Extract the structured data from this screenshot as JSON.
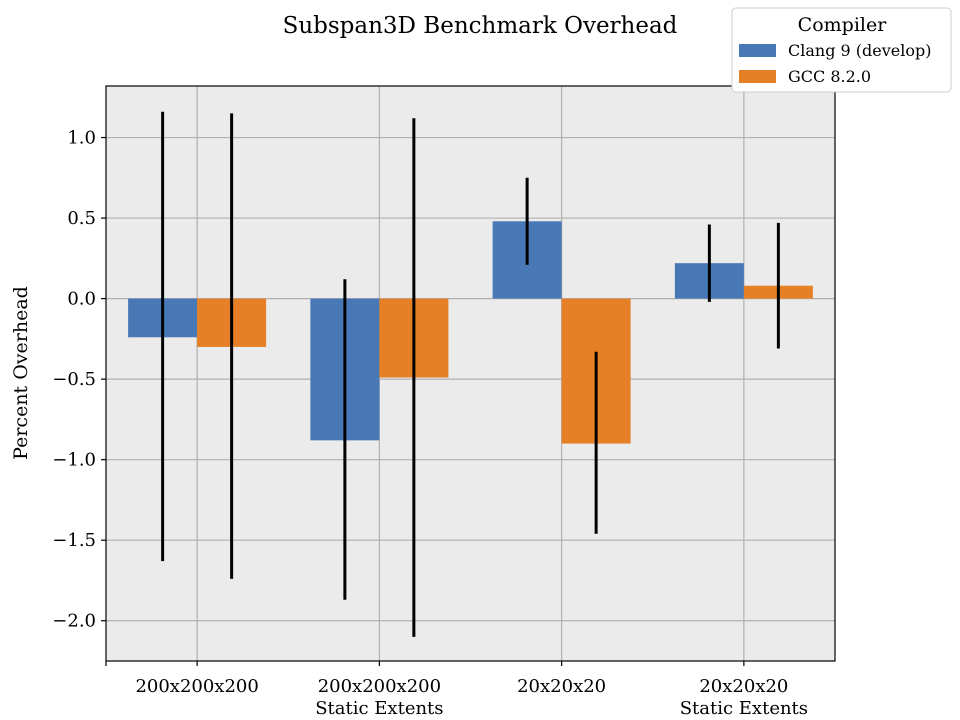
{
  "chart_data": {
    "type": "bar",
    "title": "Subspan3D Benchmark Overhead",
    "xlabel": "",
    "ylabel": "Percent Overhead",
    "categories": [
      [
        "200x200x200"
      ],
      [
        "200x200x200",
        "Static Extents"
      ],
      [
        "20x20x20"
      ],
      [
        "20x20x20",
        "Static Extents"
      ]
    ],
    "ylim": [
      -2.25,
      1.32
    ],
    "yticks": [
      -2.0,
      -1.5,
      -1.0,
      -0.5,
      0.0,
      0.5,
      1.0
    ],
    "ytick_labels": [
      "−2.0",
      "−1.5",
      "−1.0",
      "−0.5",
      "0.0",
      "0.5",
      "1.0"
    ],
    "grid": true,
    "legend": {
      "title": "Compiler",
      "placement": "top-right"
    },
    "series": [
      {
        "name": "Clang 9 (develop)",
        "color": "#4878b6",
        "values": [
          -0.24,
          -0.88,
          0.48,
          0.22
        ],
        "err_low": [
          -1.63,
          -1.87,
          0.21,
          -0.02
        ],
        "err_high": [
          1.16,
          0.12,
          0.75,
          0.46
        ]
      },
      {
        "name": "GCC 8.2.0",
        "color": "#e58026",
        "values": [
          -0.3,
          -0.49,
          -0.9,
          0.08
        ],
        "err_low": [
          -1.74,
          -2.1,
          -1.46,
          -0.31
        ],
        "err_high": [
          1.15,
          1.12,
          -0.33,
          0.47
        ]
      }
    ],
    "background_color": "#ebebeb",
    "grid_color": "#b0b0b0"
  }
}
